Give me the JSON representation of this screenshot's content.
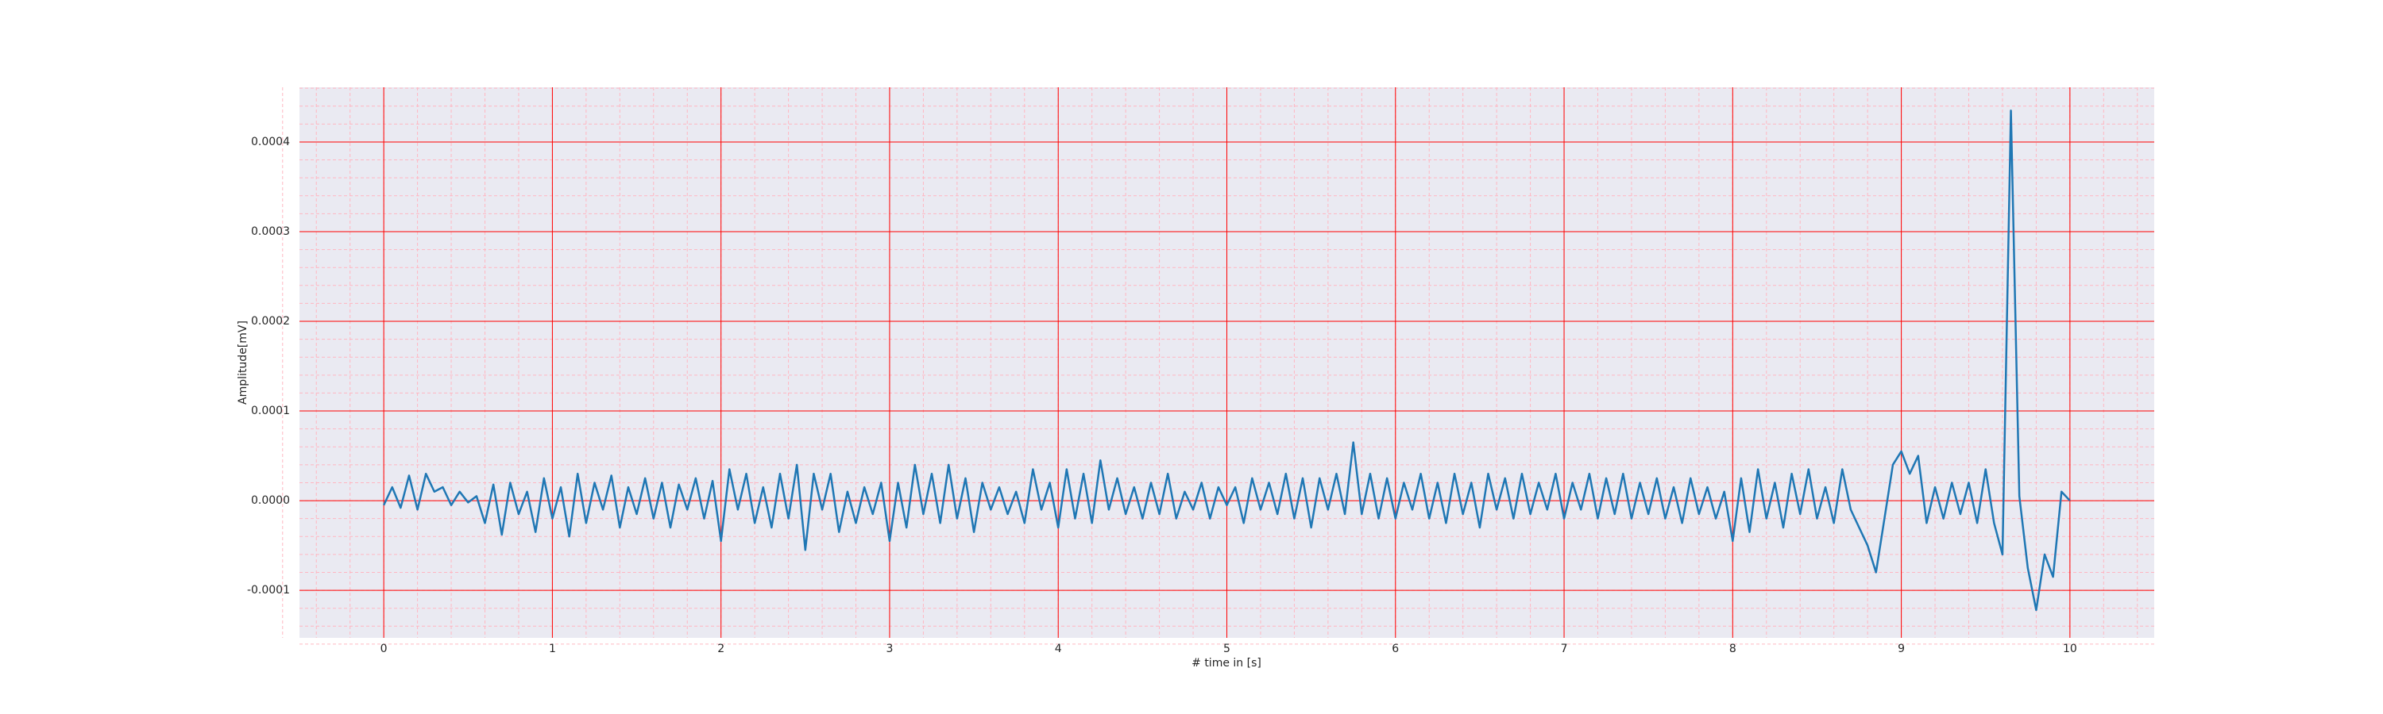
{
  "chart_data": {
    "type": "line",
    "xlabel": "# time in [s]",
    "ylabel": "Amplitude[mV]",
    "color": "#1f77b4",
    "background": "#eaeaf2",
    "grid": true,
    "grid_color": "#ff0000",
    "minor_grid": true,
    "minor_grid_color": "#ffb6c1",
    "xlim": [
      -0.5,
      10.5
    ],
    "xticks": [
      0,
      1,
      2,
      3,
      4,
      5,
      6,
      7,
      8,
      9,
      10
    ],
    "ylim": [
      -0.000153,
      0.000461
    ],
    "yticks": [
      -0.0001,
      {
        "value": 0,
        "label": "0.0000"
      },
      0.0001,
      0.0002,
      0.0003,
      0.0004
    ],
    "x": [
      0,
      0.05,
      0.1,
      0.15,
      0.2,
      0.25,
      0.3,
      0.35,
      0.4,
      0.45,
      0.5,
      0.55,
      0.6,
      0.65,
      0.7,
      0.75,
      0.8,
      0.85,
      0.9,
      0.95,
      1,
      1.05,
      1.1,
      1.15,
      1.2,
      1.25,
      1.3,
      1.35,
      1.4,
      1.45,
      1.5,
      1.55,
      1.6,
      1.65,
      1.7,
      1.75,
      1.8,
      1.85,
      1.9,
      1.95,
      2,
      2.05,
      2.1,
      2.15,
      2.2,
      2.25,
      2.3,
      2.35,
      2.4,
      2.45,
      2.5,
      2.55,
      2.6,
      2.65,
      2.7,
      2.75,
      2.8,
      2.85,
      2.9,
      2.95,
      3,
      3.05,
      3.1,
      3.15,
      3.2,
      3.25,
      3.3,
      3.35,
      3.4,
      3.45,
      3.5,
      3.55,
      3.6,
      3.65,
      3.7,
      3.75,
      3.8,
      3.85,
      3.9,
      3.95,
      4,
      4.05,
      4.1,
      4.15,
      4.2,
      4.25,
      4.3,
      4.35,
      4.4,
      4.45,
      4.5,
      4.55,
      4.6,
      4.65,
      4.7,
      4.75,
      4.8,
      4.85,
      4.9,
      4.95,
      5,
      5.05,
      5.1,
      5.15,
      5.2,
      5.25,
      5.3,
      5.35,
      5.4,
      5.45,
      5.5,
      5.55,
      5.6,
      5.65,
      5.7,
      5.75,
      5.8,
      5.85,
      5.9,
      5.95,
      6,
      6.05,
      6.1,
      6.15,
      6.2,
      6.25,
      6.3,
      6.35,
      6.4,
      6.45,
      6.5,
      6.55,
      6.6,
      6.65,
      6.7,
      6.75,
      6.8,
      6.85,
      6.9,
      6.95,
      7,
      7.05,
      7.1,
      7.15,
      7.2,
      7.25,
      7.3,
      7.35,
      7.4,
      7.45,
      7.5,
      7.55,
      7.6,
      7.65,
      7.7,
      7.75,
      7.8,
      7.85,
      7.9,
      7.95,
      8,
      8.05,
      8.1,
      8.15,
      8.2,
      8.25,
      8.3,
      8.35,
      8.4,
      8.45,
      8.5,
      8.55,
      8.6,
      8.65,
      8.7,
      8.75,
      8.8,
      8.85,
      8.9,
      8.95,
      9,
      9.05,
      9.1,
      9.15,
      9.2,
      9.25,
      9.3,
      9.35,
      9.4,
      9.45,
      9.5,
      9.55,
      9.6,
      9.65,
      9.7,
      9.75,
      9.8,
      9.85,
      9.9,
      9.95,
      10
    ],
    "values": [
      -5e-06,
      1.5e-05,
      -8e-06,
      2.8e-05,
      -1e-05,
      3e-05,
      1e-05,
      1.5e-05,
      -5e-06,
      1e-05,
      -2e-06,
      5e-06,
      -2.5e-05,
      1.8e-05,
      -3.8e-05,
      2e-05,
      -1.5e-05,
      1e-05,
      -3.5e-05,
      2.5e-05,
      -2e-05,
      1.5e-05,
      -4e-05,
      3e-05,
      -2.5e-05,
      2e-05,
      -1e-05,
      2.8e-05,
      -3e-05,
      1.5e-05,
      -1.5e-05,
      2.5e-05,
      -2e-05,
      2e-05,
      -3e-05,
      1.8e-05,
      -1e-05,
      2.5e-05,
      -2e-05,
      2.2e-05,
      -4.5e-05,
      3.5e-05,
      -1e-05,
      3e-05,
      -2.5e-05,
      1.5e-05,
      -3e-05,
      3e-05,
      -2e-05,
      4e-05,
      -5.5e-05,
      3e-05,
      -1e-05,
      3e-05,
      -3.5e-05,
      1e-05,
      -2.5e-05,
      1.5e-05,
      -1.5e-05,
      2e-05,
      -4.5e-05,
      2e-05,
      -3e-05,
      4e-05,
      -1.5e-05,
      3e-05,
      -2.5e-05,
      4e-05,
      -2e-05,
      2.5e-05,
      -3.5e-05,
      2e-05,
      -1e-05,
      1.5e-05,
      -1.5e-05,
      1e-05,
      -2.5e-05,
      3.5e-05,
      -1e-05,
      2e-05,
      -3e-05,
      3.5e-05,
      -2e-05,
      3e-05,
      -2.5e-05,
      4.5e-05,
      -1e-05,
      2.5e-05,
      -1.5e-05,
      1.5e-05,
      -2e-05,
      2e-05,
      -1.5e-05,
      3e-05,
      -2e-05,
      1e-05,
      -1e-05,
      2e-05,
      -2e-05,
      1.5e-05,
      -5e-06,
      1.5e-05,
      -2.5e-05,
      2.5e-05,
      -1e-05,
      2e-05,
      -1.5e-05,
      3e-05,
      -2e-05,
      2.5e-05,
      -3e-05,
      2.5e-05,
      -1e-05,
      3e-05,
      -1.5e-05,
      6.5e-05,
      -1.5e-05,
      3e-05,
      -2e-05,
      2.5e-05,
      -2e-05,
      2e-05,
      -1e-05,
      3e-05,
      -2e-05,
      2e-05,
      -2.5e-05,
      3e-05,
      -1.5e-05,
      2e-05,
      -3e-05,
      3e-05,
      -1e-05,
      2.5e-05,
      -2e-05,
      3e-05,
      -1.5e-05,
      2e-05,
      -1e-05,
      3e-05,
      -2e-05,
      2e-05,
      -1e-05,
      3e-05,
      -2e-05,
      2.5e-05,
      -1.5e-05,
      3e-05,
      -2e-05,
      2e-05,
      -1.5e-05,
      2.5e-05,
      -2e-05,
      1.5e-05,
      -2.5e-05,
      2.5e-05,
      -1.5e-05,
      1.5e-05,
      -2e-05,
      1e-05,
      -4.5e-05,
      2.5e-05,
      -3.5e-05,
      3.5e-05,
      -2e-05,
      2e-05,
      -3e-05,
      3e-05,
      -1.5e-05,
      3.5e-05,
      -2e-05,
      1.5e-05,
      -2.5e-05,
      3.5e-05,
      -1e-05,
      -3e-05,
      -5e-05,
      -8e-05,
      -2e-05,
      4e-05,
      5.5e-05,
      3e-05,
      5e-05,
      -2.5e-05,
      1.5e-05,
      -2e-05,
      2e-05,
      -1.5e-05,
      2e-05,
      -2.5e-05,
      3.5e-05,
      -2.5e-05,
      -6e-05,
      0.000435,
      5e-06,
      -7.5e-05,
      -0.000122,
      -6e-05,
      -8.5e-05,
      1e-05,
      0
    ]
  }
}
